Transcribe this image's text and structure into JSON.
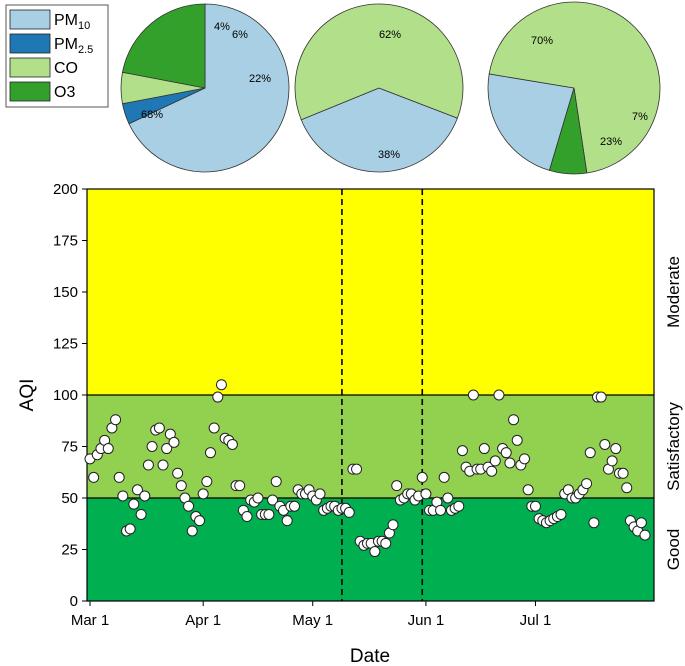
{
  "chart_data": [
    {
      "type": "pie",
      "slices": [
        {
          "name": "PM10",
          "value": 68,
          "label": "68%",
          "color": "#a9cfe4"
        },
        {
          "name": "PM2.5",
          "value": 4,
          "label": "4%",
          "color": "#1f78b4"
        },
        {
          "name": "CO",
          "value": 6,
          "label": "6%",
          "color": "#b2df8a"
        },
        {
          "name": "O3",
          "value": 22,
          "label": "22%",
          "color": "#33a02c"
        }
      ]
    },
    {
      "type": "pie",
      "slices": [
        {
          "name": "PM10",
          "value": 38,
          "label": "38%",
          "color": "#a9cfe4"
        },
        {
          "name": "CO",
          "value": 62,
          "label": "62%",
          "color": "#b2df8a"
        }
      ]
    },
    {
      "type": "pie",
      "slices": [
        {
          "name": "PM10",
          "value": 23,
          "label": "23%",
          "color": "#a9cfe4"
        },
        {
          "name": "CO",
          "value": 70,
          "label": "70%",
          "color": "#b2df8a"
        },
        {
          "name": "O3",
          "value": 7,
          "label": "7%",
          "color": "#33a02c"
        }
      ]
    },
    {
      "type": "scatter",
      "xlabel": "Date",
      "ylabel": "AQI",
      "xlim": [
        "2021-03-01",
        "2021-07-31"
      ],
      "xticks": [
        {
          "date": "2021-03-01",
          "label": "Mar 1"
        },
        {
          "date": "2021-04-01",
          "label": "Apr 1"
        },
        {
          "date": "2021-05-01",
          "label": "May 1"
        },
        {
          "date": "2021-06-01",
          "label": "Jun 1"
        },
        {
          "date": "2021-07-01",
          "label": "Jul 1"
        }
      ],
      "ylim": [
        0,
        200
      ],
      "yticks": [
        0,
        25,
        50,
        75,
        100,
        125,
        150,
        175,
        200
      ],
      "bands": [
        {
          "label": "Good",
          "from": 0,
          "to": 50,
          "color": "#00b050"
        },
        {
          "label": "Satisfactory",
          "from": 50,
          "to": 100,
          "color": "#92d050"
        },
        {
          "label": "Moderate",
          "from": 100,
          "to": 200,
          "color": "#ffff00"
        }
      ],
      "vlines": [
        "2021-05-09",
        "2021-05-31"
      ],
      "points": [
        {
          "x": "2021-03-01",
          "y": 69
        },
        {
          "x": "2021-03-02",
          "y": 60
        },
        {
          "x": "2021-03-03",
          "y": 71
        },
        {
          "x": "2021-03-04",
          "y": 74
        },
        {
          "x": "2021-03-05",
          "y": 78
        },
        {
          "x": "2021-03-06",
          "y": 74
        },
        {
          "x": "2021-03-07",
          "y": 84
        },
        {
          "x": "2021-03-08",
          "y": 88
        },
        {
          "x": "2021-03-09",
          "y": 60
        },
        {
          "x": "2021-03-10",
          "y": 51
        },
        {
          "x": "2021-03-11",
          "y": 34
        },
        {
          "x": "2021-03-12",
          "y": 35
        },
        {
          "x": "2021-03-13",
          "y": 47
        },
        {
          "x": "2021-03-14",
          "y": 54
        },
        {
          "x": "2021-03-15",
          "y": 42
        },
        {
          "x": "2021-03-16",
          "y": 51
        },
        {
          "x": "2021-03-17",
          "y": 66
        },
        {
          "x": "2021-03-18",
          "y": 75
        },
        {
          "x": "2021-03-19",
          "y": 83
        },
        {
          "x": "2021-03-20",
          "y": 84
        },
        {
          "x": "2021-03-21",
          "y": 66
        },
        {
          "x": "2021-03-22",
          "y": 74
        },
        {
          "x": "2021-03-23",
          "y": 81
        },
        {
          "x": "2021-03-24",
          "y": 77
        },
        {
          "x": "2021-03-25",
          "y": 62
        },
        {
          "x": "2021-03-26",
          "y": 56
        },
        {
          "x": "2021-03-27",
          "y": 50
        },
        {
          "x": "2021-03-28",
          "y": 46
        },
        {
          "x": "2021-03-29",
          "y": 34
        },
        {
          "x": "2021-03-30",
          "y": 41
        },
        {
          "x": "2021-03-31",
          "y": 39
        },
        {
          "x": "2021-04-01",
          "y": 52
        },
        {
          "x": "2021-04-02",
          "y": 58
        },
        {
          "x": "2021-04-03",
          "y": 72
        },
        {
          "x": "2021-04-04",
          "y": 84
        },
        {
          "x": "2021-04-05",
          "y": 99
        },
        {
          "x": "2021-04-06",
          "y": 105
        },
        {
          "x": "2021-04-07",
          "y": 79
        },
        {
          "x": "2021-04-08",
          "y": 78
        },
        {
          "x": "2021-04-09",
          "y": 76
        },
        {
          "x": "2021-04-10",
          "y": 56
        },
        {
          "x": "2021-04-11",
          "y": 56
        },
        {
          "x": "2021-04-12",
          "y": 44
        },
        {
          "x": "2021-04-13",
          "y": 41
        },
        {
          "x": "2021-04-14",
          "y": 49
        },
        {
          "x": "2021-04-15",
          "y": 48
        },
        {
          "x": "2021-04-16",
          "y": 50
        },
        {
          "x": "2021-04-17",
          "y": 42
        },
        {
          "x": "2021-04-18",
          "y": 42
        },
        {
          "x": "2021-04-19",
          "y": 42
        },
        {
          "x": "2021-04-20",
          "y": 49
        },
        {
          "x": "2021-04-21",
          "y": 58
        },
        {
          "x": "2021-04-22",
          "y": 46
        },
        {
          "x": "2021-04-23",
          "y": 44
        },
        {
          "x": "2021-04-24",
          "y": 39
        },
        {
          "x": "2021-04-25",
          "y": 46
        },
        {
          "x": "2021-04-26",
          "y": 46
        },
        {
          "x": "2021-04-27",
          "y": 54
        },
        {
          "x": "2021-04-28",
          "y": 52
        },
        {
          "x": "2021-04-29",
          "y": 52
        },
        {
          "x": "2021-04-30",
          "y": 54
        },
        {
          "x": "2021-05-01",
          "y": 51
        },
        {
          "x": "2021-05-02",
          "y": 49
        },
        {
          "x": "2021-05-03",
          "y": 52
        },
        {
          "x": "2021-05-04",
          "y": 44
        },
        {
          "x": "2021-05-05",
          "y": 45
        },
        {
          "x": "2021-05-06",
          "y": 46
        },
        {
          "x": "2021-05-07",
          "y": 46
        },
        {
          "x": "2021-05-08",
          "y": 44
        },
        {
          "x": "2021-05-09",
          "y": 45
        },
        {
          "x": "2021-05-10",
          "y": 45
        },
        {
          "x": "2021-05-11",
          "y": 43
        },
        {
          "x": "2021-05-12",
          "y": 64
        },
        {
          "x": "2021-05-13",
          "y": 64
        },
        {
          "x": "2021-05-14",
          "y": 29
        },
        {
          "x": "2021-05-15",
          "y": 27
        },
        {
          "x": "2021-05-16",
          "y": 28
        },
        {
          "x": "2021-05-17",
          "y": 28
        },
        {
          "x": "2021-05-18",
          "y": 24
        },
        {
          "x": "2021-05-19",
          "y": 29
        },
        {
          "x": "2021-05-20",
          "y": 29
        },
        {
          "x": "2021-05-21",
          "y": 28
        },
        {
          "x": "2021-05-22",
          "y": 33
        },
        {
          "x": "2021-05-23",
          "y": 37
        },
        {
          "x": "2021-05-24",
          "y": 56
        },
        {
          "x": "2021-05-25",
          "y": 49
        },
        {
          "x": "2021-05-26",
          "y": 50
        },
        {
          "x": "2021-05-27",
          "y": 52
        },
        {
          "x": "2021-05-28",
          "y": 52
        },
        {
          "x": "2021-05-29",
          "y": 49
        },
        {
          "x": "2021-05-30",
          "y": 51
        },
        {
          "x": "2021-05-31",
          "y": 60
        },
        {
          "x": "2021-06-01",
          "y": 52
        },
        {
          "x": "2021-06-02",
          "y": 44
        },
        {
          "x": "2021-06-03",
          "y": 44
        },
        {
          "x": "2021-06-04",
          "y": 48
        },
        {
          "x": "2021-06-05",
          "y": 44
        },
        {
          "x": "2021-06-06",
          "y": 60
        },
        {
          "x": "2021-06-07",
          "y": 50
        },
        {
          "x": "2021-06-08",
          "y": 44
        },
        {
          "x": "2021-06-09",
          "y": 45
        },
        {
          "x": "2021-06-10",
          "y": 46
        },
        {
          "x": "2021-06-11",
          "y": 73
        },
        {
          "x": "2021-06-12",
          "y": 65
        },
        {
          "x": "2021-06-13",
          "y": 63
        },
        {
          "x": "2021-06-14",
          "y": 100
        },
        {
          "x": "2021-06-15",
          "y": 64
        },
        {
          "x": "2021-06-16",
          "y": 64
        },
        {
          "x": "2021-06-17",
          "y": 74
        },
        {
          "x": "2021-06-18",
          "y": 65
        },
        {
          "x": "2021-06-19",
          "y": 63
        },
        {
          "x": "2021-06-20",
          "y": 68
        },
        {
          "x": "2021-06-21",
          "y": 100
        },
        {
          "x": "2021-06-22",
          "y": 74
        },
        {
          "x": "2021-06-23",
          "y": 72
        },
        {
          "x": "2021-06-24",
          "y": 67
        },
        {
          "x": "2021-06-25",
          "y": 88
        },
        {
          "x": "2021-06-26",
          "y": 78
        },
        {
          "x": "2021-06-27",
          "y": 66
        },
        {
          "x": "2021-06-28",
          "y": 69
        },
        {
          "x": "2021-06-29",
          "y": 54
        },
        {
          "x": "2021-06-30",
          "y": 46
        },
        {
          "x": "2021-07-01",
          "y": 46
        },
        {
          "x": "2021-07-02",
          "y": 40
        },
        {
          "x": "2021-07-03",
          "y": 39
        },
        {
          "x": "2021-07-04",
          "y": 38
        },
        {
          "x": "2021-07-05",
          "y": 39
        },
        {
          "x": "2021-07-06",
          "y": 40
        },
        {
          "x": "2021-07-07",
          "y": 41
        },
        {
          "x": "2021-07-08",
          "y": 42
        },
        {
          "x": "2021-07-09",
          "y": 52
        },
        {
          "x": "2021-07-10",
          "y": 54
        },
        {
          "x": "2021-07-11",
          "y": 50
        },
        {
          "x": "2021-07-12",
          "y": 50
        },
        {
          "x": "2021-07-13",
          "y": 52
        },
        {
          "x": "2021-07-14",
          "y": 54
        },
        {
          "x": "2021-07-15",
          "y": 57
        },
        {
          "x": "2021-07-16",
          "y": 72
        },
        {
          "x": "2021-07-17",
          "y": 38
        },
        {
          "x": "2021-07-18",
          "y": 99
        },
        {
          "x": "2021-07-19",
          "y": 99
        },
        {
          "x": "2021-07-20",
          "y": 76
        },
        {
          "x": "2021-07-21",
          "y": 64
        },
        {
          "x": "2021-07-22",
          "y": 68
        },
        {
          "x": "2021-07-23",
          "y": 74
        },
        {
          "x": "2021-07-24",
          "y": 62
        },
        {
          "x": "2021-07-25",
          "y": 62
        },
        {
          "x": "2021-07-26",
          "y": 55
        },
        {
          "x": "2021-07-27",
          "y": 39
        },
        {
          "x": "2021-07-28",
          "y": 36
        },
        {
          "x": "2021-07-29",
          "y": 34
        },
        {
          "x": "2021-07-30",
          "y": 38
        },
        {
          "x": "2021-07-31",
          "y": 32
        }
      ]
    }
  ],
  "legend": [
    {
      "base": "PM",
      "sub": "10",
      "color": "#a9cfe4"
    },
    {
      "base": "PM",
      "sub": "2.5",
      "color": "#1f78b4"
    },
    {
      "base": "CO",
      "sub": "",
      "color": "#b2df8a"
    },
    {
      "base": "O3",
      "sub": "",
      "color": "#33a02c"
    }
  ]
}
